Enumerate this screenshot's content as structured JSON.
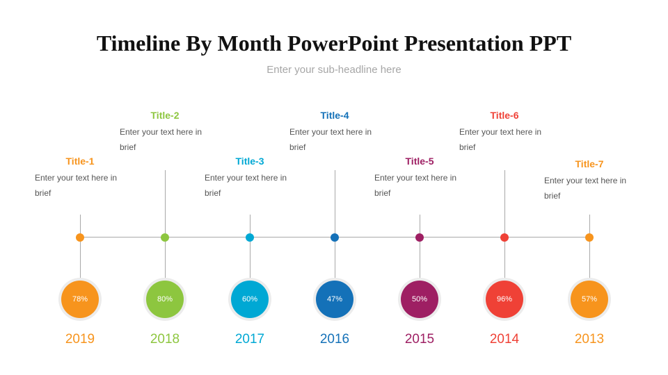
{
  "header": {
    "title": "Timeline By Month PowerPoint Presentation PPT",
    "subtitle": "Enter your sub-headline here"
  },
  "items": [
    {
      "title": "Title-1",
      "text": "Enter your text here in brief",
      "percent": "78%",
      "year": "2019",
      "color": "#f7941d",
      "position": "low"
    },
    {
      "title": "Title-2",
      "text": "Enter your text here in brief",
      "percent": "80%",
      "year": "2018",
      "color": "#8dc63f",
      "position": "high"
    },
    {
      "title": "Title-3",
      "text": "Enter your text here in brief",
      "percent": "60%",
      "year": "2017",
      "color": "#00a8d4",
      "position": "low"
    },
    {
      "title": "Title-4",
      "text": "Enter your text here in brief",
      "percent": "47%",
      "year": "2016",
      "color": "#1471b8",
      "position": "high"
    },
    {
      "title": "Title-5",
      "text": "Enter your text here in brief",
      "percent": "50%",
      "year": "2015",
      "color": "#9e1f63",
      "position": "low"
    },
    {
      "title": "Title-6",
      "text": "Enter your text here in brief",
      "percent": "96%",
      "year": "2014",
      "color": "#ef4136",
      "position": "high"
    },
    {
      "title": "Title-7",
      "text": "Enter your text here in brief",
      "percent": "57%",
      "year": "2013",
      "color": "#f7941d",
      "position": "low"
    }
  ]
}
